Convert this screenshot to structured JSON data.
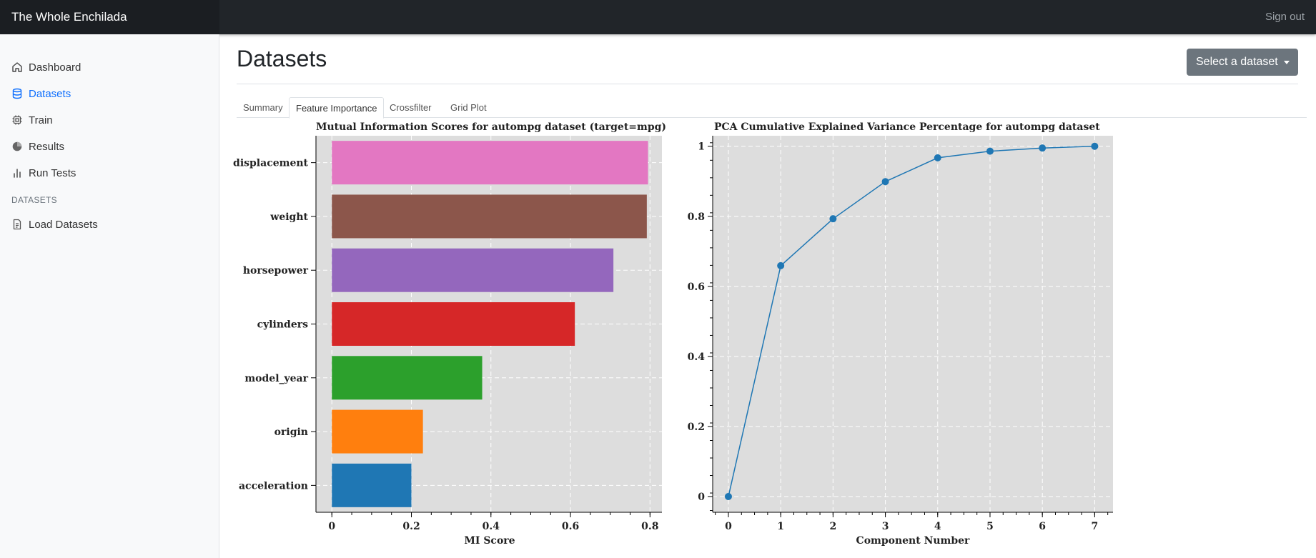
{
  "app": {
    "brand": "The Whole Enchilada",
    "signout": "Sign out"
  },
  "sidebar": {
    "items": [
      {
        "label": "Dashboard",
        "icon": "home-icon",
        "active": false
      },
      {
        "label": "Datasets",
        "icon": "database-icon",
        "active": true
      },
      {
        "label": "Train",
        "icon": "cpu-icon",
        "active": false
      },
      {
        "label": "Results",
        "icon": "pie-chart-icon",
        "active": false
      },
      {
        "label": "Run Tests",
        "icon": "bar-chart-icon",
        "active": false
      }
    ],
    "section_heading": "DATASETS",
    "section_items": [
      {
        "label": "Load Datasets",
        "icon": "file-text-icon"
      }
    ]
  },
  "main": {
    "title": "Datasets",
    "select_button": "Select a dataset",
    "tabs": [
      {
        "label": "Summary",
        "active": false
      },
      {
        "label": "Feature Importance",
        "active": true
      },
      {
        "label": "Crossfilter",
        "active": false
      },
      {
        "label": "Grid Plot",
        "active": false
      }
    ]
  },
  "chart_data": [
    {
      "type": "bar",
      "orientation": "horizontal",
      "title": "Mutual Information Scores for autompg dataset (target=mpg)",
      "xlabel": "MI Score",
      "ylabel": "",
      "categories": [
        "displacement",
        "weight",
        "horsepower",
        "cylinders",
        "model_year",
        "origin",
        "acceleration"
      ],
      "values": [
        0.795,
        0.792,
        0.708,
        0.611,
        0.378,
        0.229,
        0.2
      ],
      "colors": [
        "#e377c2",
        "#8c564b",
        "#9467bd",
        "#d62728",
        "#2ca02c",
        "#ff7f0e",
        "#1f77b4"
      ],
      "xlim": [
        -0.04,
        0.83
      ],
      "xticks": [
        0,
        0.2,
        0.4,
        0.6,
        0.8
      ],
      "xtick_labels": [
        "0",
        "0.2",
        "0.4",
        "0.6",
        "0.8"
      ],
      "grid": true,
      "background": "#dddddd"
    },
    {
      "type": "line",
      "title": "PCA Cumulative Explained Variance Percentage for autompg dataset",
      "xlabel": "Component Number",
      "ylabel": "",
      "x": [
        0,
        1,
        2,
        3,
        4,
        5,
        6,
        7
      ],
      "y": [
        0,
        0.659,
        0.793,
        0.899,
        0.967,
        0.986,
        0.995,
        1.0
      ],
      "xlim": [
        -0.3,
        7.35
      ],
      "ylim": [
        -0.045,
        1.03
      ],
      "xticks": [
        0,
        1,
        2,
        3,
        4,
        5,
        6,
        7
      ],
      "xtick_labels": [
        "0",
        "1",
        "2",
        "3",
        "4",
        "5",
        "6",
        "7"
      ],
      "yticks": [
        0,
        0.2,
        0.4,
        0.6,
        0.8,
        1
      ],
      "ytick_labels": [
        "0",
        "0.2",
        "0.4",
        "0.6",
        "0.8",
        "1"
      ],
      "color": "#1f77b4",
      "grid": true,
      "background": "#dddddd"
    }
  ]
}
